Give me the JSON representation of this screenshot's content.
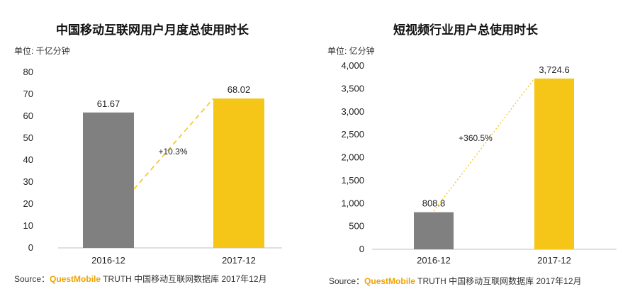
{
  "chart_data": [
    {
      "type": "bar",
      "title": "中国移动互联网用户月度总使用时长",
      "unit_label": "单位: 千亿分钟",
      "categories": [
        "2016-12",
        "2017-12"
      ],
      "values": [
        61.67,
        68.02
      ],
      "value_labels": [
        "61.67",
        "68.02"
      ],
      "ylim": [
        0,
        80
      ],
      "yticks": [
        "0",
        "10",
        "20",
        "30",
        "40",
        "50",
        "60",
        "70",
        "80"
      ],
      "tick_values": [
        0,
        10,
        20,
        30,
        40,
        50,
        60,
        70,
        80
      ],
      "bar_colors": [
        "#808080",
        "#f5c518"
      ],
      "growth_label": "+10.3%",
      "grid": false
    },
    {
      "type": "bar",
      "title": "短视频行业用户总使用时长",
      "unit_label": "单位: 亿分钟",
      "categories": [
        "2016-12",
        "2017-12"
      ],
      "values": [
        808.8,
        3724.6
      ],
      "value_labels": [
        "808.8",
        "3,724.6"
      ],
      "ylim": [
        0,
        4000
      ],
      "yticks": [
        "0",
        "500",
        "1,000",
        "1,500",
        "2,000",
        "2,500",
        "3,000",
        "3,500",
        "4,000"
      ],
      "tick_values": [
        0,
        500,
        1000,
        1500,
        2000,
        2500,
        3000,
        3500,
        4000
      ],
      "bar_colors": [
        "#808080",
        "#f5c518"
      ],
      "growth_label": "+360.5%",
      "grid": false
    }
  ],
  "source": {
    "prefix": "Source：",
    "brand": "QuestMobile",
    "rest": " TRUTH 中国移动互联网数据库 2017年12月"
  },
  "colors": {
    "accent": "#f5c518",
    "gray_bar": "#808080",
    "brand": "#f0a300"
  }
}
